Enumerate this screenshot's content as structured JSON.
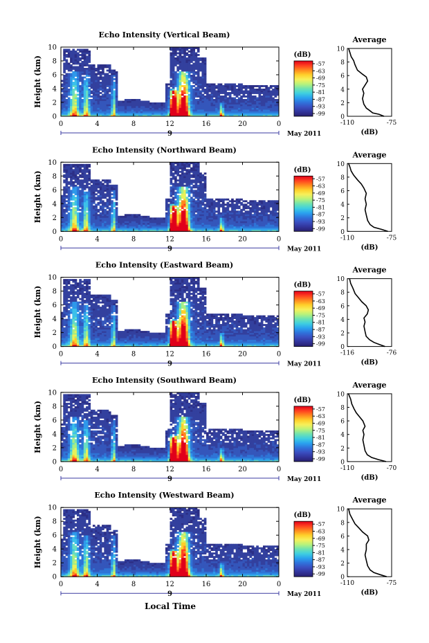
{
  "chart_data": {
    "type": "heatmap",
    "xlabel": "Local Time",
    "ylabel": "Height (km)",
    "x_ticks": [
      "0",
      "4",
      "8",
      "12",
      "16",
      "20",
      "0"
    ],
    "x_range": [
      0,
      24
    ],
    "y_ticks": [
      "0",
      "2",
      "4",
      "6",
      "8",
      "10"
    ],
    "y_range": [
      0,
      10
    ],
    "date_marker": "9",
    "date_label": "May 2011",
    "colorbar": {
      "unit": "(dB)",
      "ticks": [
        "-57",
        "-63",
        "-69",
        "-75",
        "-81",
        "-87",
        "-93",
        "-99"
      ],
      "colors": [
        "#e0001a",
        "#ff4020",
        "#ff8a1f",
        "#ffcf2a",
        "#f7f05a",
        "#b9f27a",
        "#6fe3b0",
        "#3fcfe0",
        "#2aa3ef",
        "#2f73dc",
        "#3a4fc1",
        "#32349b",
        "#281f6e"
      ]
    },
    "average": {
      "title": "Average",
      "xlabel": "(dB)",
      "y_ticks": [
        "0",
        "2",
        "4",
        "6",
        "8",
        "10"
      ],
      "y_range": [
        0,
        10
      ]
    },
    "panels": [
      {
        "title": "Echo Intensity (Vertical Beam)",
        "avg_ticks": [
          "-110",
          "-75"
        ],
        "avg_range": [
          -110,
          -75
        ],
        "avg_profile": [
          [
            -81,
            0
          ],
          [
            -85,
            0.3
          ],
          [
            -90,
            0.5
          ],
          [
            -92,
            0.8
          ],
          [
            -95,
            1.2
          ],
          [
            -97,
            1.8
          ],
          [
            -98,
            2.6
          ],
          [
            -97,
            3.4
          ],
          [
            -98,
            4
          ],
          [
            -96,
            4.6
          ],
          [
            -94,
            5.2
          ],
          [
            -95,
            5.8
          ],
          [
            -98,
            6.2
          ],
          [
            -102,
            6.8
          ],
          [
            -104,
            7.6
          ],
          [
            -105,
            8.2
          ],
          [
            -107,
            8.8
          ],
          [
            -108,
            9.4
          ],
          [
            -109,
            10
          ]
        ]
      },
      {
        "title": "Echo Intensity (Northward Beam)",
        "avg_ticks": [
          "-110",
          "-75"
        ],
        "avg_range": [
          -110,
          -75
        ],
        "avg_profile": [
          [
            -78,
            0
          ],
          [
            -83,
            0.3
          ],
          [
            -89,
            0.6
          ],
          [
            -92,
            1
          ],
          [
            -94,
            1.6
          ],
          [
            -95,
            2.4
          ],
          [
            -96,
            3.2
          ],
          [
            -95,
            4
          ],
          [
            -96,
            4.8
          ],
          [
            -95,
            5.6
          ],
          [
            -97,
            6.4
          ],
          [
            -99,
            7
          ],
          [
            -102,
            7.6
          ],
          [
            -105,
            8.3
          ],
          [
            -107,
            8.9
          ],
          [
            -108,
            9.5
          ],
          [
            -109,
            10
          ]
        ]
      },
      {
        "title": "Echo Intensity (Eastward Beam)",
        "avg_ticks": [
          "-116",
          "-76"
        ],
        "avg_range": [
          -116,
          -76
        ],
        "avg_profile": [
          [
            -82,
            0
          ],
          [
            -87,
            0.3
          ],
          [
            -92,
            0.6
          ],
          [
            -96,
            1
          ],
          [
            -99,
            1.5
          ],
          [
            -100,
            2.2
          ],
          [
            -101,
            3
          ],
          [
            -100,
            3.6
          ],
          [
            -101,
            4.2
          ],
          [
            -98,
            4.8
          ],
          [
            -97,
            5.4
          ],
          [
            -99,
            6
          ],
          [
            -103,
            6.6
          ],
          [
            -106,
            7.2
          ],
          [
            -109,
            7.8
          ],
          [
            -111,
            8.6
          ],
          [
            -113,
            9.3
          ],
          [
            -114,
            10
          ]
        ]
      },
      {
        "title": "Echo Intensity (Southward Beam)",
        "avg_ticks": [
          "-110",
          "-70"
        ],
        "avg_range": [
          -110,
          -70
        ],
        "avg_profile": [
          [
            -75,
            0
          ],
          [
            -82,
            0.3
          ],
          [
            -88,
            0.6
          ],
          [
            -92,
            1
          ],
          [
            -94,
            1.6
          ],
          [
            -95,
            2.4
          ],
          [
            -96,
            3.2
          ],
          [
            -95,
            4
          ],
          [
            -96,
            4.6
          ],
          [
            -94,
            5.2
          ],
          [
            -96,
            6
          ],
          [
            -99,
            6.6
          ],
          [
            -102,
            7.2
          ],
          [
            -104,
            7.8
          ],
          [
            -106,
            8.5
          ],
          [
            -107,
            9.2
          ],
          [
            -109,
            10
          ]
        ]
      },
      {
        "title": "Echo Intensity (Westward Beam)",
        "avg_ticks": [
          "-110",
          "-75"
        ],
        "avg_range": [
          -110,
          -75
        ],
        "avg_profile": [
          [
            -79,
            0
          ],
          [
            -84,
            0.3
          ],
          [
            -89,
            0.6
          ],
          [
            -92,
            1
          ],
          [
            -94,
            1.6
          ],
          [
            -95,
            2.4
          ],
          [
            -96,
            3.2
          ],
          [
            -95,
            4
          ],
          [
            -95,
            4.8
          ],
          [
            -93,
            5.4
          ],
          [
            -94,
            6
          ],
          [
            -98,
            6.6
          ],
          [
            -101,
            7.2
          ],
          [
            -104,
            7.8
          ],
          [
            -106,
            8.5
          ],
          [
            -108,
            9.2
          ],
          [
            -109,
            10
          ]
        ]
      }
    ]
  }
}
